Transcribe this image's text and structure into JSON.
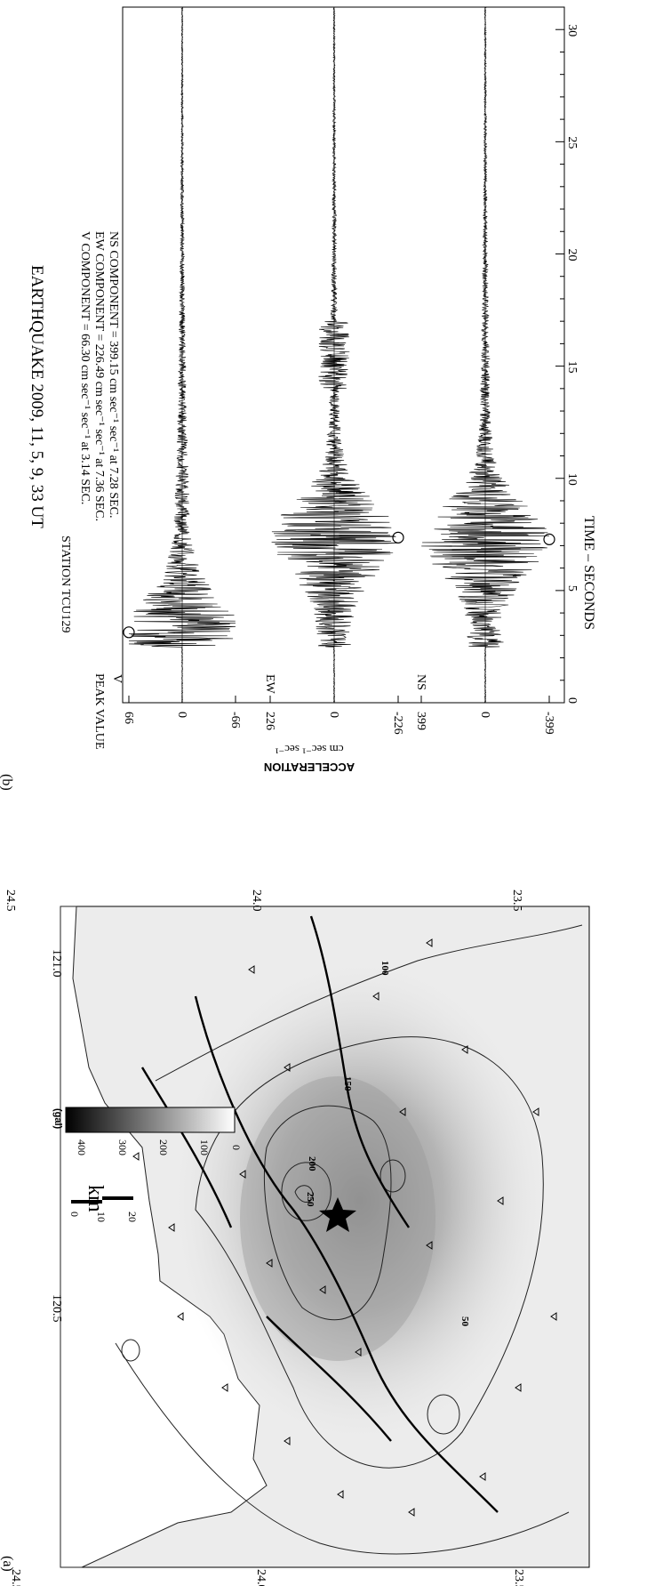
{
  "panel_a": {
    "label": "(a)",
    "lat_ticks": [
      "24.5",
      "24.0",
      "23.5"
    ],
    "lon_ticks": [
      "120.5",
      "121.0"
    ],
    "colorbar": {
      "unit": "(gal)",
      "ticks": [
        "400",
        "300",
        "200",
        "100",
        "0"
      ]
    },
    "scalebar": {
      "unit": "km",
      "ticks": [
        "0",
        "10",
        "20"
      ]
    },
    "contour_labels": [
      "50",
      "100",
      "150",
      "200",
      "250"
    ]
  },
  "panel_b": {
    "label": "(b)",
    "title": "EARTHQUAKE   2009,  11,  5,  9,  33  UT",
    "station": "STATION   TCU129",
    "peak_header": "PEAK  VALUE",
    "components": [
      {
        "line": "V    COMPONENT  =   66.30  cm sec⁻¹ sec⁻¹  at   3.14   SEC."
      },
      {
        "line": "EW  COMPONENT  = 226.49  cm sec⁻¹ sec⁻¹  at   7.36   SEC."
      },
      {
        "line": "NS  COMPONENT  = 399.15  cm sec⁻¹ sec⁻¹  at   7.28   SEC."
      }
    ],
    "ylabel_line1": "ACCELERATION",
    "ylabel_line2": "cm sec⁻¹ sec⁻¹",
    "xlabel": "TIME  –  SECONDS"
  },
  "chart_data": {
    "type": "line",
    "title": "EARTHQUAKE 2009, 11, 5, 9, 33 UT",
    "xlabel": "TIME - SECONDS",
    "ylabel": "ACCELERATION cm sec-1 sec-1",
    "xlim": [
      0,
      31
    ],
    "x_ticks": [
      "0",
      "5",
      "10",
      "15",
      "20",
      "25",
      "30"
    ],
    "series": [
      {
        "name": "V",
        "ylim": [
          -66,
          66
        ],
        "y_ticks": [
          "66",
          "0",
          "-66"
        ],
        "peak_value": 66.3,
        "peak_time": 3.14
      },
      {
        "name": "EW",
        "ylim": [
          -226,
          226
        ],
        "y_ticks": [
          "226",
          "0",
          "-226"
        ],
        "peak_value": 226.49,
        "peak_time": 7.36
      },
      {
        "name": "NS",
        "ylim": [
          -399,
          399
        ],
        "y_ticks": [
          "399",
          "0",
          "-399"
        ],
        "peak_value": 399.15,
        "peak_time": 7.28
      }
    ]
  }
}
